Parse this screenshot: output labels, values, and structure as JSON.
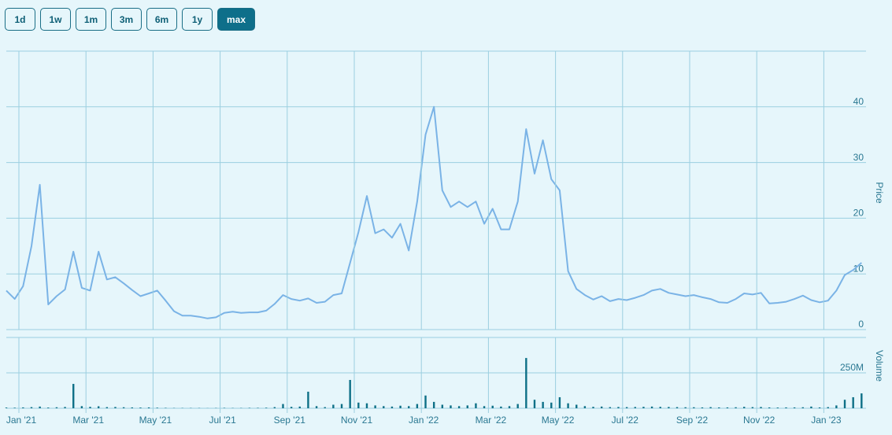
{
  "range_buttons": {
    "options": [
      "1d",
      "1w",
      "1m",
      "3m",
      "6m",
      "1y",
      "max"
    ],
    "active": "max"
  },
  "chart_data": [
    {
      "type": "line",
      "ylabel": "Price",
      "color": "#7ab3e6",
      "x": [
        "2020-12",
        "2020-12",
        "2020-12",
        "2020-12",
        "2021-01",
        "2021-01",
        "2021-01",
        "2021-01",
        "2021-02",
        "2021-02",
        "2021-02",
        "2021-02",
        "2021-03",
        "2021-03",
        "2021-03",
        "2021-03",
        "2021-04",
        "2021-04",
        "2021-04",
        "2021-04",
        "2021-05",
        "2021-05",
        "2021-05",
        "2021-05",
        "2021-06",
        "2021-06",
        "2021-06",
        "2021-06",
        "2021-07",
        "2021-07",
        "2021-07",
        "2021-07",
        "2021-08",
        "2021-08",
        "2021-08",
        "2021-08",
        "2021-09",
        "2021-09",
        "2021-09",
        "2021-09",
        "2021-10",
        "2021-10",
        "2021-10",
        "2021-10",
        "2021-11",
        "2021-11",
        "2021-11",
        "2021-11",
        "2021-12",
        "2021-12",
        "2021-12",
        "2021-12",
        "2022-01",
        "2022-01",
        "2022-01",
        "2022-01",
        "2022-02",
        "2022-02",
        "2022-02",
        "2022-02",
        "2022-03",
        "2022-03",
        "2022-03",
        "2022-03",
        "2022-04",
        "2022-04",
        "2022-04",
        "2022-04",
        "2022-05",
        "2022-05",
        "2022-05",
        "2022-05",
        "2022-06",
        "2022-06",
        "2022-06",
        "2022-06",
        "2022-07",
        "2022-07",
        "2022-07",
        "2022-07",
        "2022-08",
        "2022-08",
        "2022-08",
        "2022-08",
        "2022-09",
        "2022-09",
        "2022-09",
        "2022-09",
        "2022-10",
        "2022-10",
        "2022-10",
        "2022-10",
        "2022-11",
        "2022-11",
        "2022-11",
        "2022-11",
        "2022-12",
        "2022-12",
        "2022-12",
        "2022-12",
        "2023-01",
        "2023-01",
        "2023-01",
        "2023-01",
        "2023-02",
        "2023-02",
        "2023-02",
        "2023-02"
      ],
      "values": [
        null,
        null,
        7,
        5.5,
        7.8,
        15,
        26,
        4.5,
        6,
        7.2,
        14,
        7.5,
        7,
        14,
        9,
        9.4,
        8.3,
        7.1,
        6,
        6.5,
        7,
        5.2,
        3.3,
        2.5,
        2.5,
        2.3,
        2.0,
        2.2,
        3,
        3.2,
        3,
        3.1,
        3.1,
        3.4,
        4.6,
        6.2,
        5.5,
        5.2,
        5.6,
        4.8,
        5,
        6.2,
        6.5,
        12,
        17.5,
        24,
        17.3,
        18,
        16.5,
        19,
        14.2,
        23,
        35,
        40,
        25,
        22,
        23,
        22,
        23,
        19,
        21.7,
        18,
        18,
        23,
        36,
        28,
        34,
        27,
        25,
        10.5,
        7.3,
        6.2,
        5.4,
        6,
        5.1,
        5.5,
        5.3,
        5.7,
        6.2,
        7,
        7.3,
        6.6,
        6.3,
        6,
        6.2,
        5.8,
        5.5,
        4.9,
        4.8,
        5.5,
        6.5,
        6.3,
        6.6,
        4.7,
        4.8,
        5,
        5.5,
        6.1,
        5.3,
        4.9,
        5.2,
        7,
        9.8,
        10.7,
        12,
        null,
        null,
        null
      ],
      "ylim": [
        0,
        50
      ],
      "yticks": [
        0,
        10,
        20,
        30,
        40
      ],
      "grid": true
    },
    {
      "type": "bar",
      "ylabel": "Volume",
      "color": "#0e7087",
      "x": [
        "2020-12",
        "2020-12",
        "2020-12",
        "2020-12",
        "2021-01",
        "2021-01",
        "2021-01",
        "2021-01",
        "2021-02",
        "2021-02",
        "2021-02",
        "2021-02",
        "2021-03",
        "2021-03",
        "2021-03",
        "2021-03",
        "2021-04",
        "2021-04",
        "2021-04",
        "2021-04",
        "2021-05",
        "2021-05",
        "2021-05",
        "2021-05",
        "2021-06",
        "2021-06",
        "2021-06",
        "2021-06",
        "2021-07",
        "2021-07",
        "2021-07",
        "2021-07",
        "2021-08",
        "2021-08",
        "2021-08",
        "2021-08",
        "2021-09",
        "2021-09",
        "2021-09",
        "2021-09",
        "2021-10",
        "2021-10",
        "2021-10",
        "2021-10",
        "2021-11",
        "2021-11",
        "2021-11",
        "2021-11",
        "2021-12",
        "2021-12",
        "2021-12",
        "2021-12",
        "2022-01",
        "2022-01",
        "2022-01",
        "2022-01",
        "2022-02",
        "2022-02",
        "2022-02",
        "2022-02",
        "2022-03",
        "2022-03",
        "2022-03",
        "2022-03",
        "2022-04",
        "2022-04",
        "2022-04",
        "2022-04",
        "2022-05",
        "2022-05",
        "2022-05",
        "2022-05",
        "2022-06",
        "2022-06",
        "2022-06",
        "2022-06",
        "2022-07",
        "2022-07",
        "2022-07",
        "2022-07",
        "2022-08",
        "2022-08",
        "2022-08",
        "2022-08",
        "2022-09",
        "2022-09",
        "2022-09",
        "2022-09",
        "2022-10",
        "2022-10",
        "2022-10",
        "2022-10",
        "2022-11",
        "2022-11",
        "2022-11",
        "2022-11",
        "2022-12",
        "2022-12",
        "2022-12",
        "2022-12",
        "2023-01",
        "2023-01",
        "2023-01",
        "2023-01",
        "2023-02",
        "2023-02",
        "2023-02",
        "2023-02"
      ],
      "values": [
        null,
        null,
        5000000,
        4000000,
        6000000,
        8000000,
        12000000,
        5000000,
        7000000,
        9000000,
        172000000,
        15000000,
        10000000,
        14000000,
        8000000,
        9000000,
        7000000,
        6000000,
        5000000,
        6000000,
        4000000,
        3000000,
        2000000,
        2000000,
        2000000,
        2000000,
        1000000,
        2000000,
        3000000,
        2000000,
        2000000,
        3000000,
        3000000,
        4000000,
        8000000,
        30000000,
        10000000,
        12000000,
        117000000,
        15000000,
        8000000,
        25000000,
        30000000,
        200000000,
        40000000,
        35000000,
        20000000,
        15000000,
        12000000,
        18000000,
        15000000,
        30000000,
        90000000,
        45000000,
        25000000,
        20000000,
        15000000,
        20000000,
        35000000,
        15000000,
        18000000,
        12000000,
        15000000,
        30000000,
        355000000,
        60000000,
        45000000,
        40000000,
        78000000,
        35000000,
        25000000,
        15000000,
        10000000,
        12000000,
        8000000,
        9000000,
        8000000,
        9000000,
        10000000,
        12000000,
        10000000,
        9000000,
        8000000,
        7000000,
        7000000,
        6000000,
        8000000,
        6000000,
        6000000,
        7000000,
        10000000,
        8000000,
        9000000,
        6000000,
        5000000,
        6000000,
        6000000,
        7000000,
        12000000,
        6000000,
        8000000,
        20000000,
        60000000,
        78000000,
        105000000,
        null,
        null,
        null
      ],
      "ylim": [
        0,
        500000000
      ],
      "yticks": [
        {
          "value": 250000000,
          "label": "250M"
        }
      ],
      "grid": true,
      "xticks": [
        {
          "value": "2021-01",
          "label": "Jan '21"
        },
        {
          "value": "2021-03",
          "label": "Mar '21"
        },
        {
          "value": "2021-05",
          "label": "May '21"
        },
        {
          "value": "2021-07",
          "label": "Jul '21"
        },
        {
          "value": "2021-09",
          "label": "Sep '21"
        },
        {
          "value": "2021-11",
          "label": "Nov '21"
        },
        {
          "value": "2022-01",
          "label": "Jan '22"
        },
        {
          "value": "2022-03",
          "label": "Mar '22"
        },
        {
          "value": "2022-05",
          "label": "May '22"
        },
        {
          "value": "2022-07",
          "label": "Jul '22"
        },
        {
          "value": "2022-09",
          "label": "Sep '22"
        },
        {
          "value": "2022-11",
          "label": "Nov '22"
        },
        {
          "value": "2023-01",
          "label": "Jan '23"
        }
      ]
    }
  ]
}
